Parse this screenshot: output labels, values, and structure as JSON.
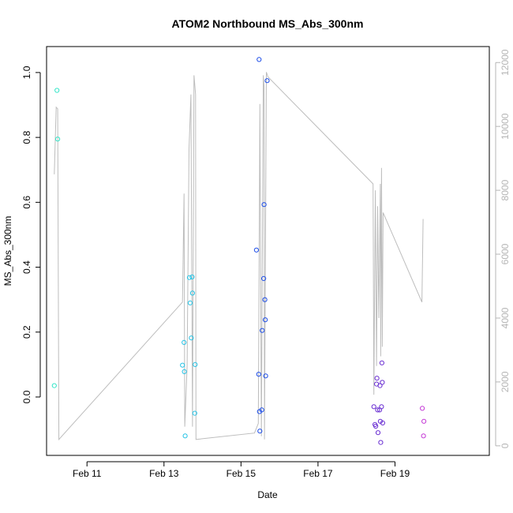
{
  "chart_data": {
    "type": "scatter",
    "title": "ATOM2 Northbound MS_Abs_300nm",
    "xlabel": "Date",
    "ylabel": "MS_Abs_300nm",
    "x_range_days": [
      9.95,
      21.45
    ],
    "x_ticks": [
      {
        "day": 11,
        "label": "Feb 11"
      },
      {
        "day": 13,
        "label": "Feb 13"
      },
      {
        "day": 15,
        "label": "Feb 15"
      },
      {
        "day": 17,
        "label": "Feb 17"
      },
      {
        "day": 19,
        "label": "Feb 19"
      }
    ],
    "ylim": [
      -0.18,
      1.08
    ],
    "y_ticks": [
      0.0,
      0.2,
      0.4,
      0.6,
      0.8,
      1.0
    ],
    "y_tick_labels": [
      "0.0",
      "0.2",
      "0.4",
      "0.6",
      "0.8",
      "1.0"
    ],
    "y2lim": [
      -300,
      12500
    ],
    "y2_ticks": [
      0,
      2000,
      4000,
      6000,
      8000,
      10000,
      12000
    ],
    "y2_tick_labels": [
      "0",
      "2000",
      "4000",
      "6000",
      "8000",
      "10000",
      "12000"
    ],
    "grid": false,
    "legend": "none",
    "points": [
      {
        "day": 10.15,
        "y": 0.035,
        "color": "#33e6c8"
      },
      {
        "day": 10.22,
        "y": 0.945,
        "color": "#33e6c8"
      },
      {
        "day": 10.24,
        "y": 0.795,
        "color": "#33e6c8"
      },
      {
        "day": 13.48,
        "y": 0.098,
        "color": "#27c4e6"
      },
      {
        "day": 13.52,
        "y": 0.168,
        "color": "#27c4e6"
      },
      {
        "day": 13.53,
        "y": 0.078,
        "color": "#27c4e6"
      },
      {
        "day": 13.55,
        "y": -0.12,
        "color": "#27c4e6"
      },
      {
        "day": 13.66,
        "y": 0.368,
        "color": "#27c4e6"
      },
      {
        "day": 13.68,
        "y": 0.29,
        "color": "#27c4e6"
      },
      {
        "day": 13.71,
        "y": 0.182,
        "color": "#27c4e6"
      },
      {
        "day": 13.73,
        "y": 0.37,
        "color": "#27c4e6"
      },
      {
        "day": 13.74,
        "y": 0.32,
        "color": "#27c4e6"
      },
      {
        "day": 13.81,
        "y": 0.1,
        "color": "#27c4e6"
      },
      {
        "day": 13.8,
        "y": -0.05,
        "color": "#27c4e6"
      },
      {
        "day": 15.4,
        "y": 0.453,
        "color": "#1e4ee8"
      },
      {
        "day": 15.47,
        "y": 1.04,
        "color": "#1e4ee8"
      },
      {
        "day": 15.46,
        "y": 0.07,
        "color": "#1e4ee8"
      },
      {
        "day": 15.48,
        "y": -0.045,
        "color": "#1e4ee8"
      },
      {
        "day": 15.49,
        "y": -0.105,
        "color": "#1e4ee8"
      },
      {
        "day": 15.54,
        "y": -0.04,
        "color": "#1e4ee8"
      },
      {
        "day": 15.55,
        "y": 0.205,
        "color": "#1e4ee8"
      },
      {
        "day": 15.59,
        "y": 0.365,
        "color": "#1e4ee8"
      },
      {
        "day": 15.6,
        "y": 0.593,
        "color": "#1e4ee8"
      },
      {
        "day": 15.62,
        "y": 0.3,
        "color": "#1e4ee8"
      },
      {
        "day": 15.63,
        "y": 0.238,
        "color": "#1e4ee8"
      },
      {
        "day": 15.64,
        "y": 0.065,
        "color": "#1e4ee8"
      },
      {
        "day": 15.68,
        "y": 0.975,
        "color": "#1e4ee8"
      },
      {
        "day": 18.45,
        "y": -0.03,
        "color": "#6a2fd2"
      },
      {
        "day": 18.48,
        "y": -0.085,
        "color": "#6a2fd2"
      },
      {
        "day": 18.5,
        "y": -0.09,
        "color": "#6a2fd2"
      },
      {
        "day": 18.53,
        "y": 0.058,
        "color": "#6a2fd2"
      },
      {
        "day": 18.52,
        "y": 0.04,
        "color": "#6a2fd2"
      },
      {
        "day": 18.55,
        "y": -0.04,
        "color": "#6a2fd2"
      },
      {
        "day": 18.56,
        "y": -0.11,
        "color": "#6a2fd2"
      },
      {
        "day": 18.6,
        "y": -0.04,
        "color": "#6a2fd2"
      },
      {
        "day": 18.61,
        "y": 0.035,
        "color": "#6a2fd2"
      },
      {
        "day": 18.62,
        "y": -0.075,
        "color": "#6a2fd2"
      },
      {
        "day": 18.63,
        "y": -0.14,
        "color": "#6a2fd2"
      },
      {
        "day": 18.65,
        "y": -0.03,
        "color": "#6a2fd2"
      },
      {
        "day": 18.66,
        "y": 0.105,
        "color": "#6a2fd2"
      },
      {
        "day": 18.67,
        "y": 0.045,
        "color": "#6a2fd2"
      },
      {
        "day": 18.68,
        "y": -0.08,
        "color": "#6a2fd2"
      },
      {
        "day": 19.71,
        "y": -0.035,
        "color": "#c43ad6"
      },
      {
        "day": 19.75,
        "y": -0.075,
        "color": "#c43ad6"
      },
      {
        "day": 19.74,
        "y": -0.12,
        "color": "#c43ad6"
      }
    ],
    "secondary_line": {
      "color": "#bdbdbd",
      "points": [
        {
          "day": 10.15,
          "y2": 8500
        },
        {
          "day": 10.2,
          "y2": 10600
        },
        {
          "day": 10.24,
          "y2": 10550
        },
        {
          "day": 10.27,
          "y2": 200
        },
        {
          "day": 13.48,
          "y2": 4500
        },
        {
          "day": 13.52,
          "y2": 7900
        },
        {
          "day": 13.54,
          "y2": 600
        },
        {
          "day": 13.6,
          "y2": 2500
        },
        {
          "day": 13.65,
          "y2": 9300
        },
        {
          "day": 13.7,
          "y2": 11000
        },
        {
          "day": 13.74,
          "y2": 600
        },
        {
          "day": 13.78,
          "y2": 11600
        },
        {
          "day": 13.82,
          "y2": 11000
        },
        {
          "day": 13.83,
          "y2": 200
        },
        {
          "day": 15.35,
          "y2": 400
        },
        {
          "day": 15.45,
          "y2": 700
        },
        {
          "day": 15.49,
          "y2": 10700
        },
        {
          "day": 15.53,
          "y2": 300
        },
        {
          "day": 15.58,
          "y2": 11600
        },
        {
          "day": 15.6,
          "y2": 11250
        },
        {
          "day": 15.61,
          "y2": 200
        },
        {
          "day": 15.66,
          "y2": 11700
        },
        {
          "day": 15.7,
          "y2": 11550
        },
        {
          "day": 18.43,
          "y2": 8200
        },
        {
          "day": 18.45,
          "y2": 1600
        },
        {
          "day": 18.49,
          "y2": 8000
        },
        {
          "day": 18.52,
          "y2": 2500
        },
        {
          "day": 18.55,
          "y2": 7500
        },
        {
          "day": 18.58,
          "y2": 4000
        },
        {
          "day": 18.62,
          "y2": 8200
        },
        {
          "day": 18.63,
          "y2": 2800
        },
        {
          "day": 18.65,
          "y2": 8700
        },
        {
          "day": 18.67,
          "y2": 3100
        },
        {
          "day": 18.69,
          "y2": 7300
        },
        {
          "day": 19.7,
          "y2": 4500
        },
        {
          "day": 19.73,
          "y2": 7100
        }
      ]
    }
  }
}
